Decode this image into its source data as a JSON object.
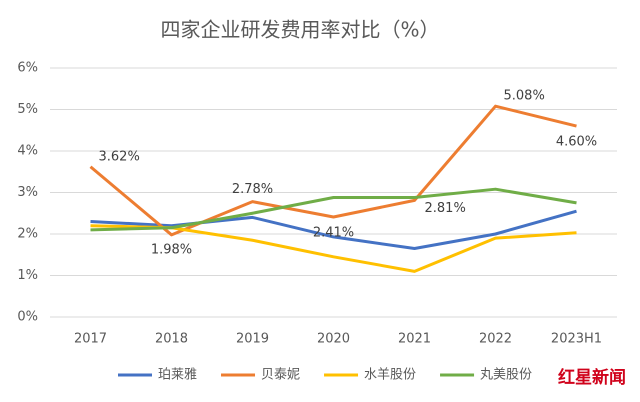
{
  "chart_data": {
    "type": "line",
    "title": "四家企业研发费用率对比（%）",
    "categories": [
      "2017",
      "2018",
      "2019",
      "2020",
      "2021",
      "2022",
      "2023H1"
    ],
    "series": [
      {
        "name": "珀莱雅",
        "color": "#4472c4",
        "values": [
          2.3,
          2.2,
          2.4,
          1.93,
          1.65,
          2.0,
          2.55
        ]
      },
      {
        "name": "贝泰妮",
        "color": "#ed7d31",
        "values": [
          3.62,
          1.98,
          2.78,
          2.41,
          2.81,
          5.08,
          4.6
        ],
        "value_labels": [
          "3.62%",
          "1.98%",
          "2.78%",
          "2.41%",
          "2.81%",
          "5.08%",
          "4.60%"
        ]
      },
      {
        "name": "水羊股份",
        "color": "#ffc000",
        "values": [
          2.2,
          2.15,
          1.85,
          1.45,
          1.1,
          1.9,
          2.03
        ]
      },
      {
        "name": "丸美股份",
        "color": "#70ad47",
        "values": [
          2.1,
          2.15,
          2.5,
          2.88,
          2.88,
          3.08,
          2.75
        ]
      }
    ],
    "ylim": [
      0,
      6
    ],
    "yticks": [
      {
        "value": 0,
        "label": "0%"
      },
      {
        "value": 1,
        "label": "1%"
      },
      {
        "value": 2,
        "label": "2%"
      },
      {
        "value": 3,
        "label": "3%"
      },
      {
        "value": 4,
        "label": "4%"
      },
      {
        "value": 5,
        "label": "5%"
      },
      {
        "value": 6,
        "label": "6%"
      }
    ],
    "grid": true,
    "legend": "bottom",
    "logo": "红星新闻"
  }
}
